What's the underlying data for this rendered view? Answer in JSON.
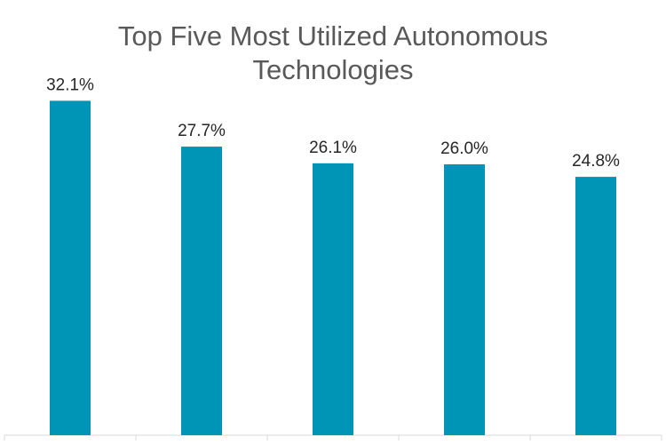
{
  "chart_data": {
    "type": "bar",
    "title_lines": [
      "Top Five Most Utilized Autonomous",
      "Technologies"
    ],
    "categories": [
      "",
      "",
      "",
      "",
      ""
    ],
    "values": [
      32.1,
      27.7,
      26.1,
      26.0,
      24.8
    ],
    "value_labels": [
      "32.1%",
      "27.7%",
      "26.1%",
      "26.0%",
      "24.8%"
    ],
    "unit": "%",
    "ylim": [
      0,
      35
    ],
    "grid": false,
    "legend": "none",
    "bar_color": "#0095B6",
    "axis_color": "#D9D9D9",
    "label_color": "#262626",
    "title_color": "#595959"
  }
}
